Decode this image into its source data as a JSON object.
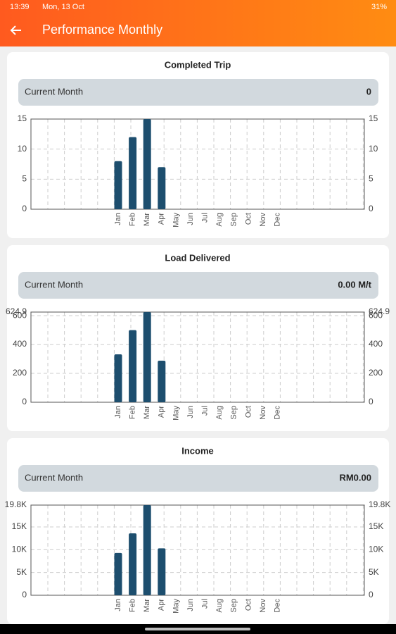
{
  "status_bar": {
    "time": "13:39",
    "date": "Mon, 13 Oct",
    "battery": "31%"
  },
  "app_bar": {
    "title": "Performance Monthly"
  },
  "cards": [
    {
      "label": "Current Month",
      "value": "0"
    },
    {
      "label": "Current Month",
      "value": "0.00 M/t"
    },
    {
      "label": "Current Month",
      "value": "RM0.00"
    }
  ],
  "chart_data": [
    {
      "type": "bar",
      "title": "Completed Trip",
      "color": "#1d4e6e",
      "grid": true,
      "categories": [
        "Jan",
        "Feb",
        "Mar",
        "Apr",
        "May",
        "Jun",
        "Jul",
        "Aug",
        "Sep",
        "Oct",
        "Nov",
        "Dec"
      ],
      "values": [
        8,
        12,
        15,
        7,
        0,
        0,
        0,
        0,
        0,
        0,
        0,
        0
      ],
      "ylim": [
        0,
        15
      ],
      "yticks": [
        0,
        5,
        10,
        15
      ]
    },
    {
      "type": "bar",
      "title": "Load Delivered",
      "color": "#1d4e6e",
      "grid": true,
      "categories": [
        "Jan",
        "Feb",
        "Mar",
        "Apr",
        "May",
        "Jun",
        "Jul",
        "Aug",
        "Sep",
        "Oct",
        "Nov",
        "Dec"
      ],
      "values": [
        332,
        500,
        624.9,
        288,
        0,
        0,
        0,
        0,
        0,
        0,
        0,
        0
      ],
      "ylim": [
        0,
        624.9
      ],
      "yticks": [
        0,
        200,
        400,
        600,
        624.9
      ]
    },
    {
      "type": "bar",
      "title": "Income",
      "color": "#1d4e6e",
      "grid": true,
      "categories": [
        "Jan",
        "Feb",
        "Mar",
        "Apr",
        "May",
        "Jun",
        "Jul",
        "Aug",
        "Sep",
        "Oct",
        "Nov",
        "Dec"
      ],
      "values": [
        9300,
        13600,
        19800,
        10300,
        0,
        0,
        0,
        0,
        0,
        0,
        0,
        0
      ],
      "ylim": [
        0,
        19800
      ],
      "yticks": [
        0,
        {
          "value": 5000,
          "label": "5K"
        },
        {
          "value": 10000,
          "label": "10K"
        },
        {
          "value": 15000,
          "label": "15K"
        },
        {
          "value": 19800,
          "label": "19.8K"
        }
      ]
    }
  ]
}
